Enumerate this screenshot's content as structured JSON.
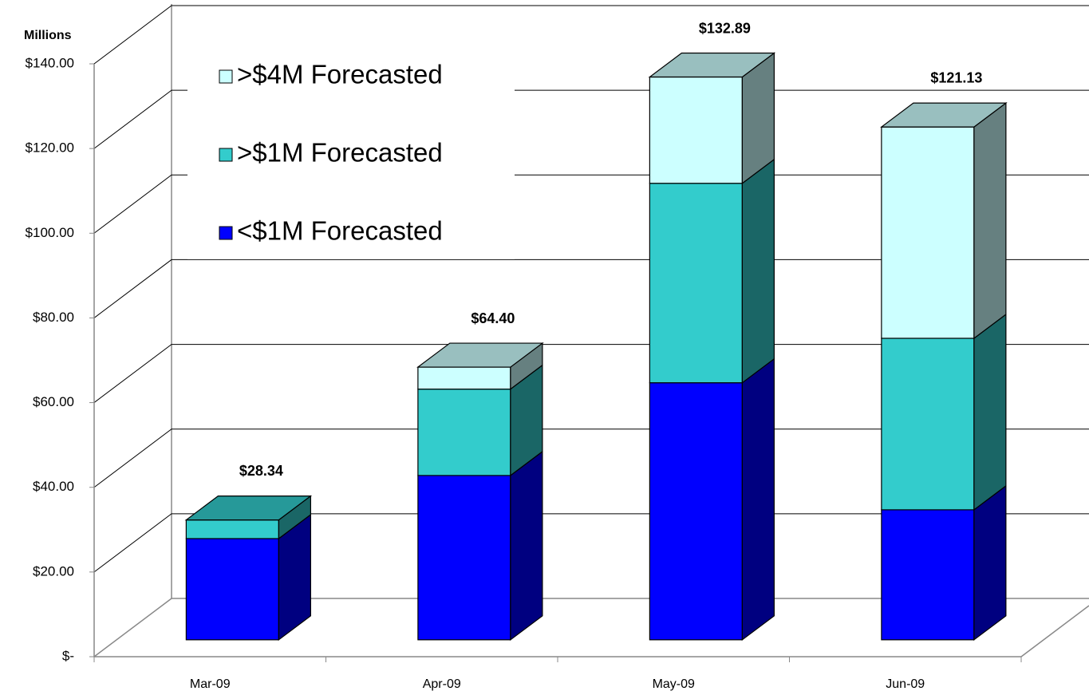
{
  "chart_data": {
    "type": "bar3d_stacked",
    "y_axis_title": "Millions",
    "categories": [
      "Mar-09",
      "Apr-09",
      "May-09",
      "Jun-09"
    ],
    "series": [
      {
        "name": "<$1M Forecasted",
        "color": "#0000FF",
        "values": [
          23.9,
          38.8,
          60.7,
          30.7
        ]
      },
      {
        "name": ">$1M Forecasted",
        "color": "#33CCCC",
        "values": [
          4.4,
          20.4,
          47.1,
          40.5
        ]
      },
      {
        "name": ">$4M Forecasted",
        "color": "#CCFFFF",
        "values": [
          0,
          5.2,
          25.1,
          49.9
        ]
      }
    ],
    "totals": [
      28.34,
      64.4,
      132.89,
      121.13
    ],
    "total_labels": [
      "$28.34",
      "$64.40",
      "$132.89",
      "$121.13"
    ],
    "ylim": [
      0,
      140
    ],
    "yticks": [
      {
        "value": 0,
        "label": "$-"
      },
      {
        "value": 20,
        "label": "$20.00"
      },
      {
        "value": 40,
        "label": "$40.00"
      },
      {
        "value": 60,
        "label": "$60.00"
      },
      {
        "value": 80,
        "label": "$80.00"
      },
      {
        "value": 100,
        "label": "$100.00"
      },
      {
        "value": 120,
        "label": "$120.00"
      },
      {
        "value": 140,
        "label": "$140.00"
      }
    ],
    "grid": true,
    "legend": "upper left"
  }
}
